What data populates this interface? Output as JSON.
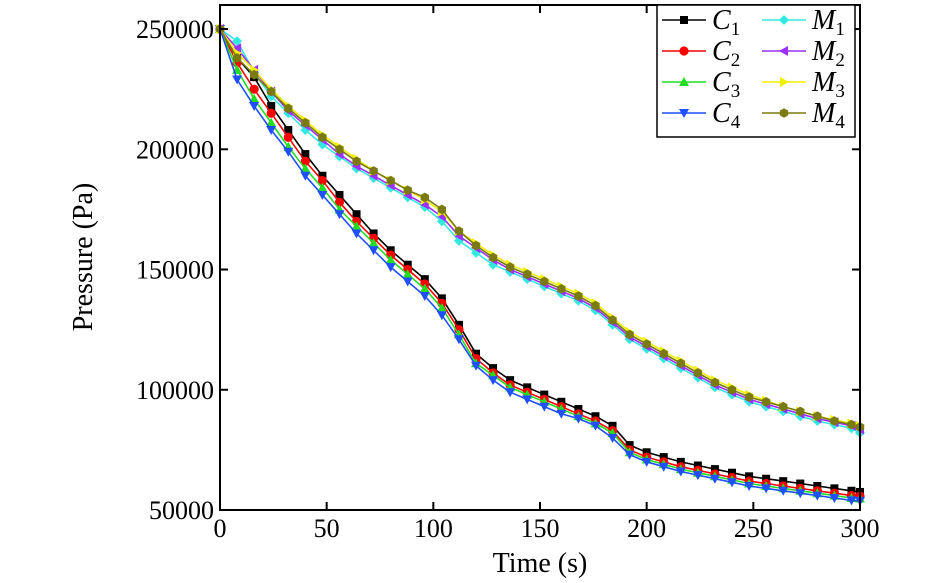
{
  "chart_data": {
    "type": "line",
    "xlabel": "Time (s)",
    "ylabel": "Pressure (Pa)",
    "xlim": [
      0,
      300
    ],
    "ylim": [
      50000,
      260000
    ],
    "xticks": [
      0,
      50,
      100,
      150,
      200,
      250,
      300
    ],
    "yticks": [
      50000,
      100000,
      150000,
      200000,
      250000
    ],
    "xtick_labels": [
      "0",
      "50",
      "100",
      "150",
      "200",
      "250",
      "300"
    ],
    "ytick_labels": [
      "50000",
      "100000",
      "150000",
      "200000",
      "250000"
    ],
    "grid": false,
    "legend_position": "top-right",
    "x": [
      0,
      8,
      16,
      24,
      32,
      40,
      48,
      56,
      64,
      72,
      80,
      88,
      96,
      104,
      112,
      120,
      128,
      136,
      144,
      152,
      160,
      168,
      176,
      184,
      192,
      200,
      208,
      216,
      224,
      232,
      240,
      248,
      256,
      264,
      272,
      280,
      288,
      296,
      300
    ],
    "series": [
      {
        "name": "C",
        "sub": "1",
        "color": "#000000",
        "marker": "square",
        "values": [
          250000,
          238000,
          230000,
          218000,
          208000,
          198000,
          189000,
          181000,
          173000,
          165000,
          158000,
          152000,
          146000,
          138000,
          127000,
          115000,
          109000,
          104000,
          101000,
          98000,
          95000,
          92000,
          89000,
          85000,
          77000,
          74000,
          72000,
          70000,
          68500,
          67000,
          65500,
          64000,
          63000,
          62000,
          61000,
          60000,
          59000,
          58000,
          57500
        ]
      },
      {
        "name": "C",
        "sub": "2",
        "color": "#ff0000",
        "marker": "circle",
        "values": [
          250000,
          236000,
          225000,
          215000,
          205000,
          195000,
          187000,
          178000,
          170000,
          163000,
          156000,
          150000,
          144000,
          136000,
          125000,
          113000,
          107000,
          102000,
          99000,
          96000,
          93000,
          90000,
          87000,
          83000,
          75000,
          72000,
          70000,
          68000,
          66500,
          65000,
          63500,
          62000,
          61000,
          60000,
          59000,
          58000,
          57000,
          56000,
          55800
        ]
      },
      {
        "name": "C",
        "sub": "3",
        "color": "#22dd22",
        "marker": "triangle-up",
        "values": [
          250000,
          233000,
          221000,
          211000,
          201000,
          192000,
          184000,
          175000,
          168000,
          161000,
          154000,
          148000,
          142000,
          134000,
          123000,
          111000,
          106000,
          101000,
          98000,
          95000,
          92000,
          89000,
          86000,
          82000,
          74000,
          71000,
          69000,
          67000,
          65500,
          64000,
          62500,
          61000,
          60000,
          59000,
          58000,
          57000,
          56000,
          55000,
          54800
        ]
      },
      {
        "name": "C",
        "sub": "4",
        "color": "#1f4fff",
        "marker": "triangle-down",
        "values": [
          250000,
          229000,
          218000,
          208000,
          199000,
          189000,
          181000,
          173000,
          165000,
          158000,
          151000,
          145000,
          139000,
          131000,
          121000,
          110000,
          104000,
          99000,
          96000,
          93000,
          90000,
          88000,
          85000,
          80000,
          73000,
          70000,
          68000,
          66000,
          64500,
          63000,
          61500,
          60000,
          59000,
          58000,
          57000,
          56000,
          55000,
          54000,
          53800
        ]
      },
      {
        "name": "M",
        "sub": "1",
        "color": "#33e8e0",
        "marker": "diamond",
        "values": [
          250000,
          245000,
          232000,
          222000,
          215000,
          208000,
          202000,
          197000,
          192000,
          188000,
          184000,
          180000,
          176000,
          170000,
          162000,
          157000,
          152000,
          149000,
          146000,
          143000,
          140000,
          137000,
          133000,
          127000,
          121000,
          117000,
          113000,
          109000,
          105000,
          101000,
          98000,
          95000,
          93000,
          91000,
          89000,
          87000,
          85500,
          84000,
          82000
        ]
      },
      {
        "name": "M",
        "sub": "2",
        "color": "#9b30ff",
        "marker": "triangle-left",
        "values": [
          250000,
          242000,
          233000,
          224000,
          216000,
          210000,
          204000,
          198000,
          193000,
          189000,
          185000,
          181000,
          177000,
          172000,
          164000,
          159000,
          154000,
          150000,
          147000,
          144000,
          141000,
          138000,
          134000,
          128000,
          122000,
          118000,
          114000,
          110000,
          106000,
          102000,
          99000,
          96000,
          94000,
          92000,
          90000,
          88000,
          86500,
          85000,
          83500
        ]
      },
      {
        "name": "M",
        "sub": "3",
        "color": "#f0f000",
        "marker": "triangle-right",
        "values": [
          250000,
          240000,
          233000,
          225000,
          218000,
          212000,
          206000,
          201000,
          196000,
          191000,
          187000,
          183000,
          179000,
          174000,
          166000,
          161000,
          156000,
          152000,
          149000,
          146000,
          143000,
          140000,
          136000,
          130000,
          124000,
          120000,
          116000,
          112000,
          108000,
          104000,
          101000,
          98000,
          95500,
          93000,
          91000,
          89000,
          87500,
          86000,
          85000
        ]
      },
      {
        "name": "M",
        "sub": "4",
        "color": "#7a7a10",
        "marker": "hexagon",
        "values": [
          250000,
          238000,
          231000,
          224000,
          217000,
          211000,
          205000,
          200000,
          195000,
          191000,
          187000,
          183000,
          180000,
          175000,
          166000,
          160000,
          155000,
          151000,
          148000,
          145000,
          142000,
          139000,
          135000,
          129000,
          123000,
          119000,
          115000,
          111000,
          107000,
          103000,
          100000,
          97000,
          95000,
          93000,
          91000,
          89000,
          87000,
          85500,
          84500
        ]
      }
    ]
  }
}
